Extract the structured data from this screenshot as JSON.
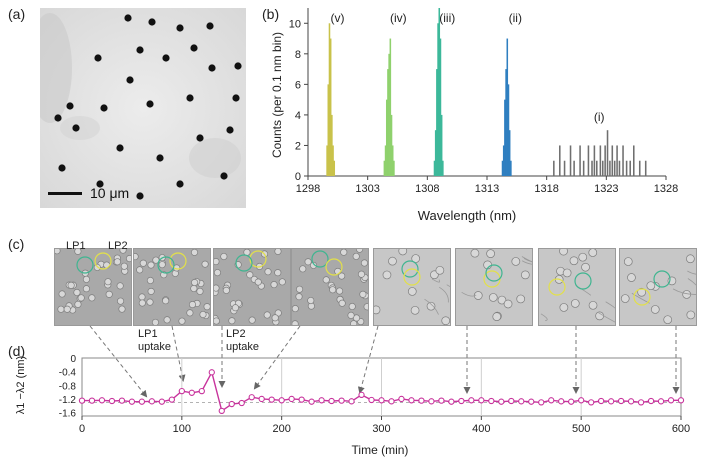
{
  "panel_labels": {
    "a": "(a)",
    "b": "(b)",
    "c": "(c)",
    "d": "(d)"
  },
  "panel_a": {
    "scale_bar_label": "10 μm"
  },
  "panel_c": {
    "lp1_label": "LP1",
    "lp2_label": "LP2",
    "annotation_lp1": [
      "LP1",
      "uptake"
    ],
    "annotation_lp2": [
      "LP2",
      "uptake"
    ],
    "thumbnail_count": 8
  },
  "colors": {
    "v": "#c9c24a",
    "iv": "#8fd16d",
    "iii": "#3cb89a",
    "ii": "#2f7fc0",
    "i": "#6f6f6f",
    "trace": "#c8339c",
    "marker_fill": "#ffffff",
    "circle_yellow": "#e2e04a",
    "circle_teal": "#3fb590"
  },
  "chart_data": [
    {
      "id": "b",
      "type": "bar",
      "title": "",
      "xlabel": "Wavelength (nm)",
      "ylabel": "Counts (per 0.1 nm bin)",
      "xlim": [
        1298,
        1328
      ],
      "ylim": [
        0,
        11
      ],
      "xticks": [
        1298,
        1303,
        1308,
        1313,
        1318,
        1323,
        1328
      ],
      "yticks": [
        0,
        2,
        4,
        6,
        8,
        10
      ],
      "bin_width": 0.1,
      "series": [
        {
          "name": "(v)",
          "color_key": "v",
          "x": [
            1299.6,
            1299.7,
            1299.8,
            1299.9,
            1300.0,
            1300.1,
            1300.2
          ],
          "values": [
            2,
            6,
            10,
            9,
            4,
            2,
            1
          ]
        },
        {
          "name": "(iv)",
          "color_key": "iv",
          "x": [
            1304.4,
            1304.5,
            1304.6,
            1304.7,
            1304.8,
            1304.9,
            1305.0,
            1305.1,
            1305.2
          ],
          "values": [
            1,
            2,
            5,
            7,
            8,
            9,
            4,
            2,
            1
          ]
        },
        {
          "name": "(iii)",
          "color_key": "iii",
          "x": [
            1308.6,
            1308.7,
            1308.8,
            1308.9,
            1309.0,
            1309.1,
            1309.2,
            1309.3
          ],
          "values": [
            1,
            3,
            7,
            10,
            11,
            9,
            4,
            1
          ]
        },
        {
          "name": "(ii)",
          "color_key": "ii",
          "x": [
            1314.3,
            1314.4,
            1314.5,
            1314.6,
            1314.7,
            1314.8,
            1314.9,
            1315.0
          ],
          "values": [
            1,
            2,
            5,
            7,
            9,
            6,
            3,
            1
          ]
        },
        {
          "name": "(i)",
          "color_key": "i",
          "x": [
            1318.6,
            1319.1,
            1319.5,
            1320.0,
            1320.3,
            1320.8,
            1321.1,
            1321.5,
            1321.8,
            1322.0,
            1322.2,
            1322.5,
            1322.7,
            1322.9,
            1323.1,
            1323.3,
            1323.5,
            1323.7,
            1323.9,
            1324.1,
            1324.4,
            1324.7,
            1325.0,
            1325.3,
            1325.8,
            1326.3
          ],
          "values": [
            1,
            2,
            1,
            2,
            1,
            2,
            1,
            2,
            1,
            2,
            1,
            2,
            1,
            2,
            3,
            1,
            2,
            1,
            2,
            1,
            2,
            1,
            1,
            2,
            1,
            1
          ]
        }
      ]
    },
    {
      "id": "d",
      "type": "line",
      "title": "",
      "xlabel": "Time (min)",
      "ylabel": "λ1 −λ2 (nm)",
      "xlim": [
        0,
        600
      ],
      "ylim": [
        -1.7,
        0
      ],
      "xticks": [
        0,
        100,
        200,
        300,
        400,
        500,
        600
      ],
      "yticks": [
        0,
        -0.4,
        -0.8,
        -1.2,
        -1.6
      ],
      "ytick_labels": [
        "0",
        "-0.4",
        "-0.8",
        "-1.2",
        "-1.6"
      ],
      "reference_line_y": -1.3,
      "x": [
        0,
        10,
        20,
        30,
        40,
        50,
        60,
        70,
        80,
        90,
        100,
        110,
        120,
        130,
        140,
        150,
        160,
        170,
        180,
        190,
        200,
        210,
        220,
        230,
        240,
        250,
        260,
        270,
        280,
        290,
        300,
        310,
        320,
        330,
        340,
        350,
        360,
        370,
        380,
        390,
        400,
        410,
        420,
        430,
        440,
        450,
        460,
        470,
        480,
        490,
        500,
        510,
        520,
        530,
        540,
        550,
        560,
        570,
        580,
        590,
        600
      ],
      "values": [
        -1.25,
        -1.25,
        -1.24,
        -1.26,
        -1.25,
        -1.28,
        -1.28,
        -1.27,
        -1.28,
        -1.22,
        -0.97,
        -1.02,
        -0.97,
        -0.42,
        -1.55,
        -1.35,
        -1.32,
        -1.15,
        -1.2,
        -1.22,
        -1.24,
        -1.2,
        -1.22,
        -1.28,
        -1.24,
        -1.26,
        -1.25,
        -1.27,
        -1.08,
        -1.23,
        -1.24,
        -1.27,
        -1.2,
        -1.24,
        -1.25,
        -1.27,
        -1.25,
        -1.28,
        -1.26,
        -1.24,
        -1.24,
        -1.26,
        -1.28,
        -1.26,
        -1.27,
        -1.28,
        -1.3,
        -1.24,
        -1.27,
        -1.28,
        -1.24,
        -1.3,
        -1.26,
        -1.27,
        -1.26,
        -1.27,
        -1.3,
        -1.26,
        -1.27,
        -1.24,
        -1.24
      ]
    }
  ]
}
